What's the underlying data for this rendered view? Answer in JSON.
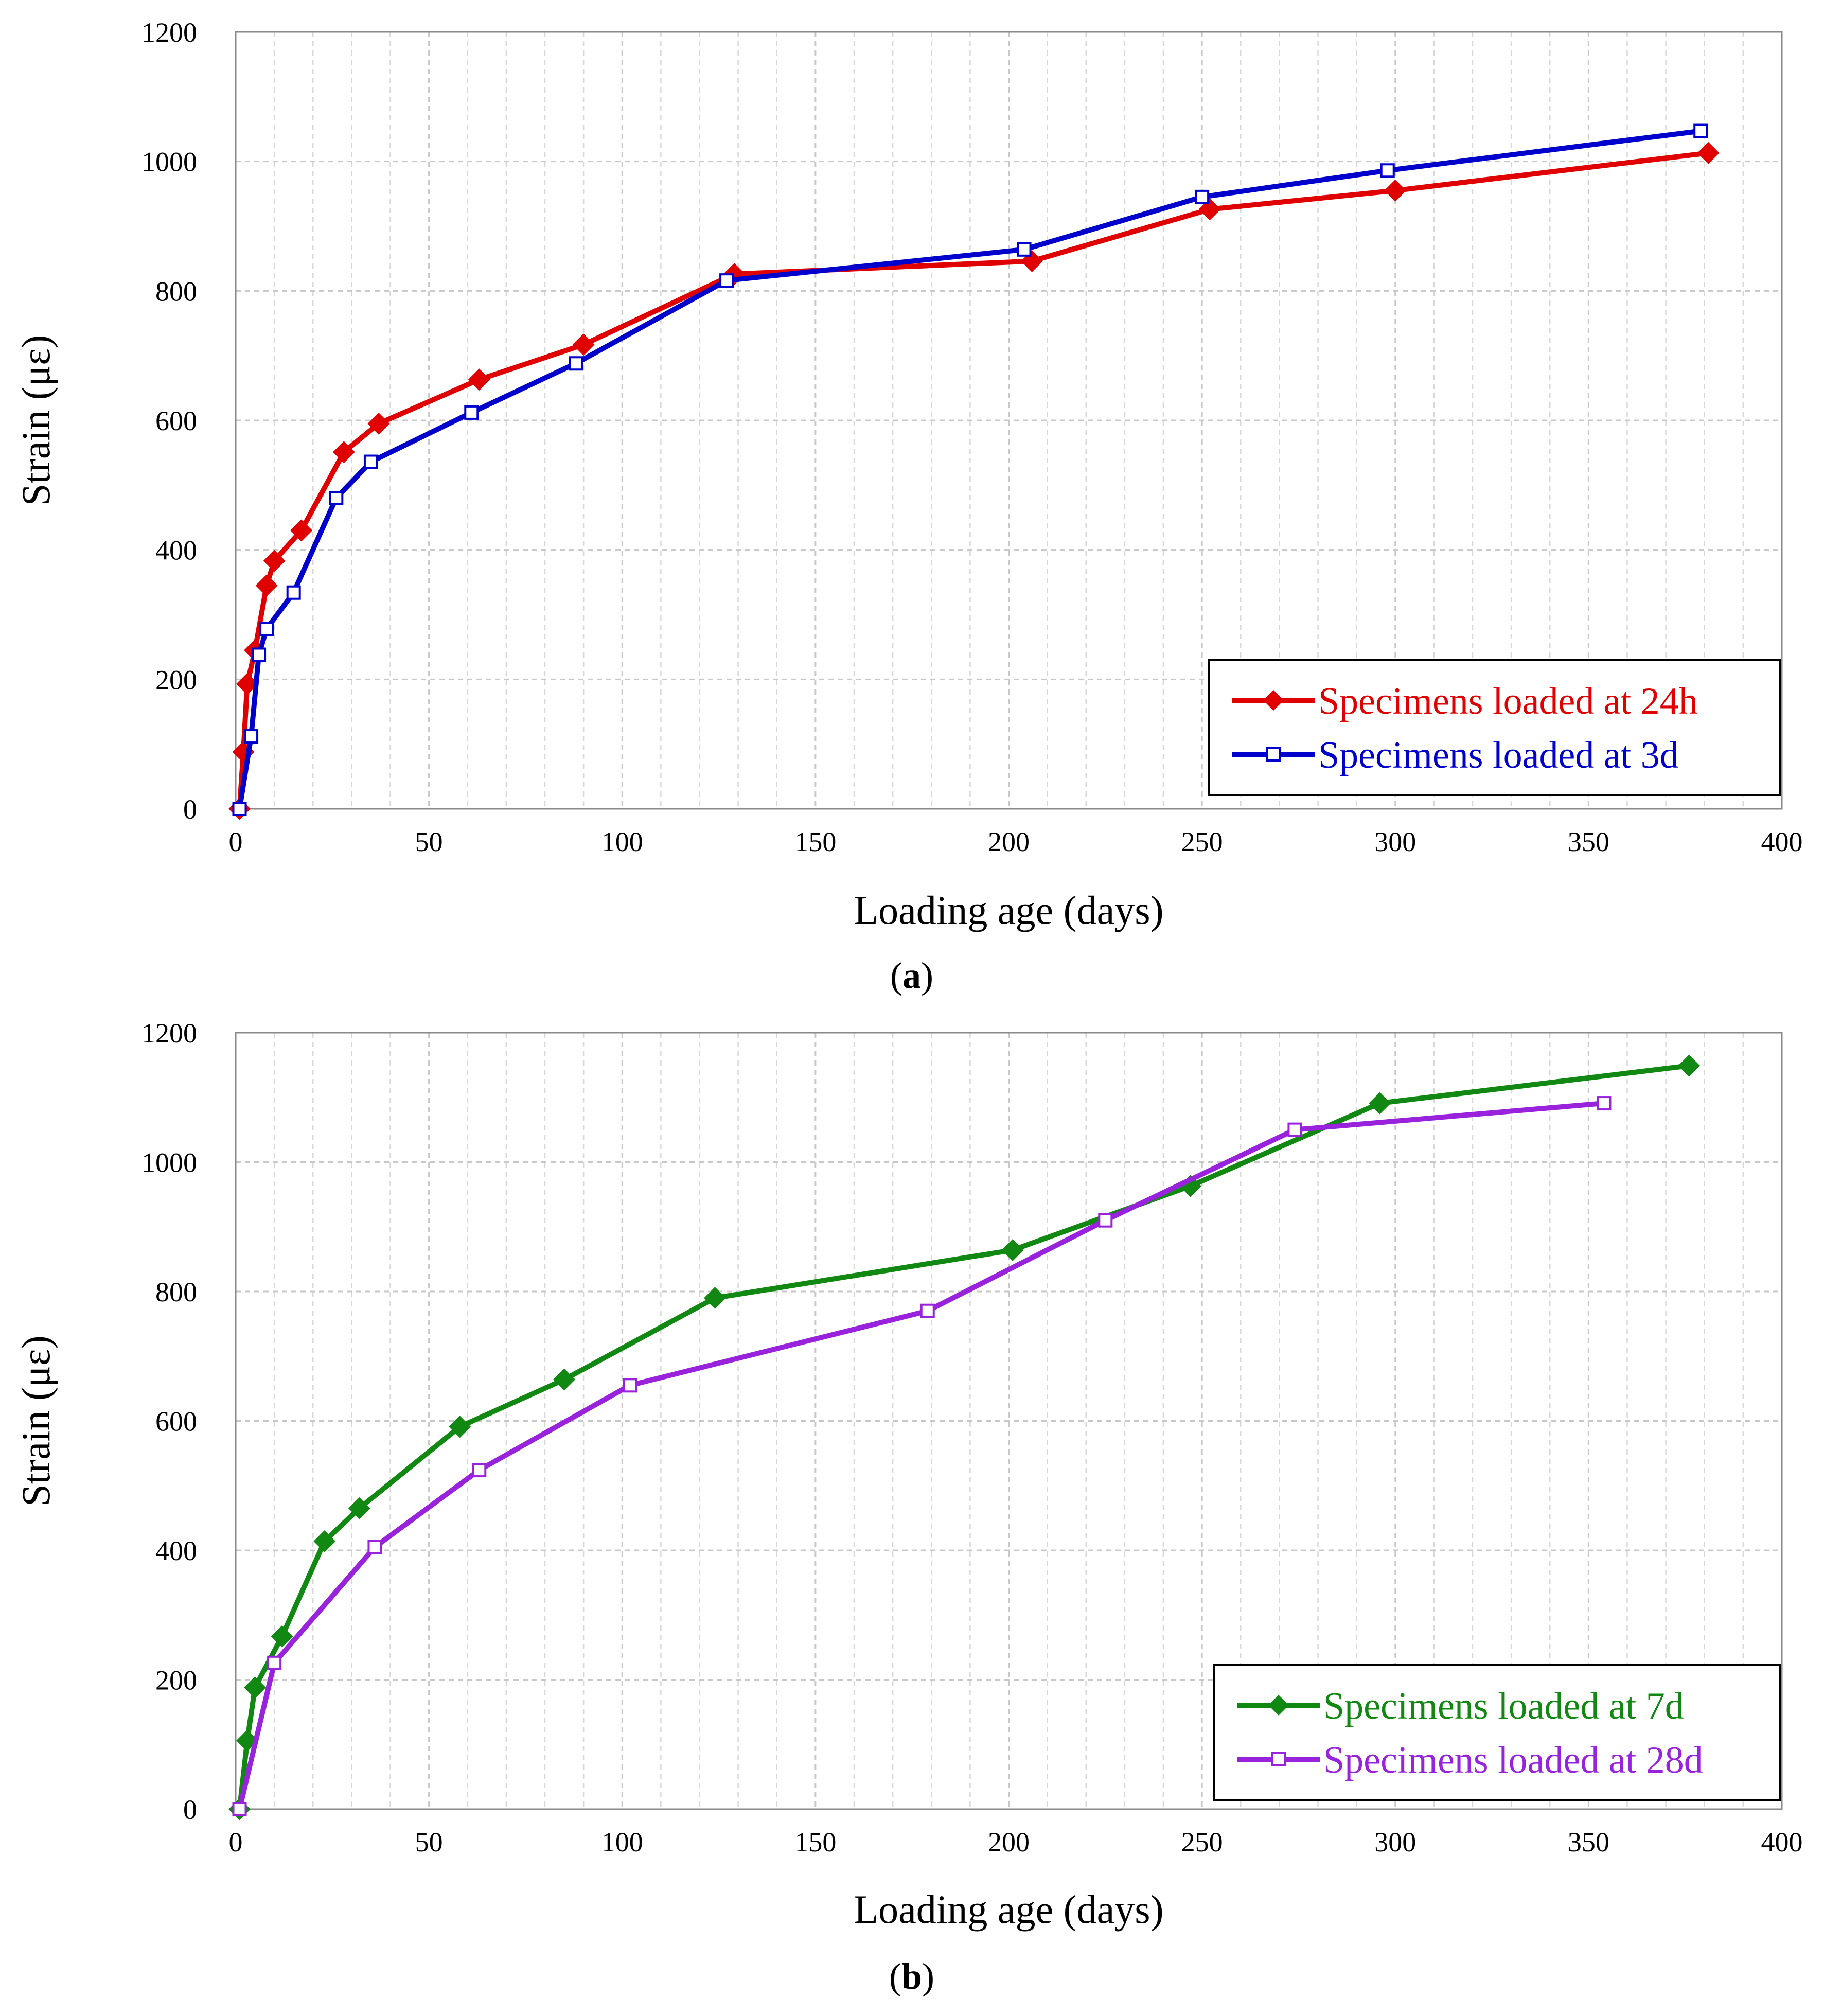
{
  "chart_data": [
    {
      "type": "line",
      "panel_label": "a",
      "xlabel": "Loading age (days)",
      "ylabel": "Strain (με)",
      "xlim": [
        0,
        400
      ],
      "ylim": [
        0,
        1200
      ],
      "xticks": [
        0,
        50,
        100,
        150,
        200,
        250,
        300,
        350,
        400
      ],
      "yticks": [
        0,
        200,
        400,
        600,
        800,
        1000,
        1200
      ],
      "grid": true,
      "legend_position": "bottom-right",
      "series": [
        {
          "name": "Specimens loaded at 24h",
          "color": "#e00000",
          "marker": "filled-diamond",
          "x": [
            1,
            2,
            3,
            5,
            8,
            10,
            17,
            28,
            37,
            63,
            90,
            129,
            206,
            252,
            300,
            381
          ],
          "y": [
            0,
            88,
            193,
            245,
            345,
            383,
            430,
            551,
            595,
            663,
            717,
            826,
            846,
            926,
            955,
            1013
          ]
        },
        {
          "name": "Specimens loaded at 3d",
          "color": "#0000cc",
          "marker": "open-square",
          "x": [
            1,
            4,
            6,
            8,
            15,
            26,
            35,
            61,
            88,
            127,
            204,
            250,
            298,
            379
          ],
          "y": [
            0,
            112,
            238,
            278,
            334,
            480,
            536,
            612,
            688,
            816,
            864,
            945,
            986,
            1047
          ]
        }
      ]
    },
    {
      "type": "line",
      "panel_label": "b",
      "xlabel": "Loading age (days)",
      "ylabel": "Strain (με)",
      "xlim": [
        0,
        400
      ],
      "ylim": [
        0,
        1200
      ],
      "xticks": [
        0,
        50,
        100,
        150,
        200,
        250,
        300,
        350,
        400
      ],
      "yticks": [
        0,
        200,
        400,
        600,
        800,
        1000,
        1200
      ],
      "grid": true,
      "legend_position": "bottom-right",
      "series": [
        {
          "name": "Specimens loaded at 7d",
          "color": "#118811",
          "marker": "filled-diamond",
          "x": [
            1,
            3,
            5,
            12,
            23,
            32,
            58,
            85,
            124,
            201,
            247,
            296,
            376
          ],
          "y": [
            0,
            106,
            188,
            267,
            414,
            465,
            591,
            664,
            790,
            864,
            963,
            1091,
            1149
          ]
        },
        {
          "name": "Specimens loaded at 28d",
          "color": "#9922dd",
          "marker": "open-square",
          "x": [
            1,
            10,
            36,
            63,
            102,
            179,
            225,
            274,
            354
          ],
          "y": [
            0,
            226,
            405,
            524,
            655,
            770,
            910,
            1050,
            1091
          ]
        }
      ]
    }
  ]
}
